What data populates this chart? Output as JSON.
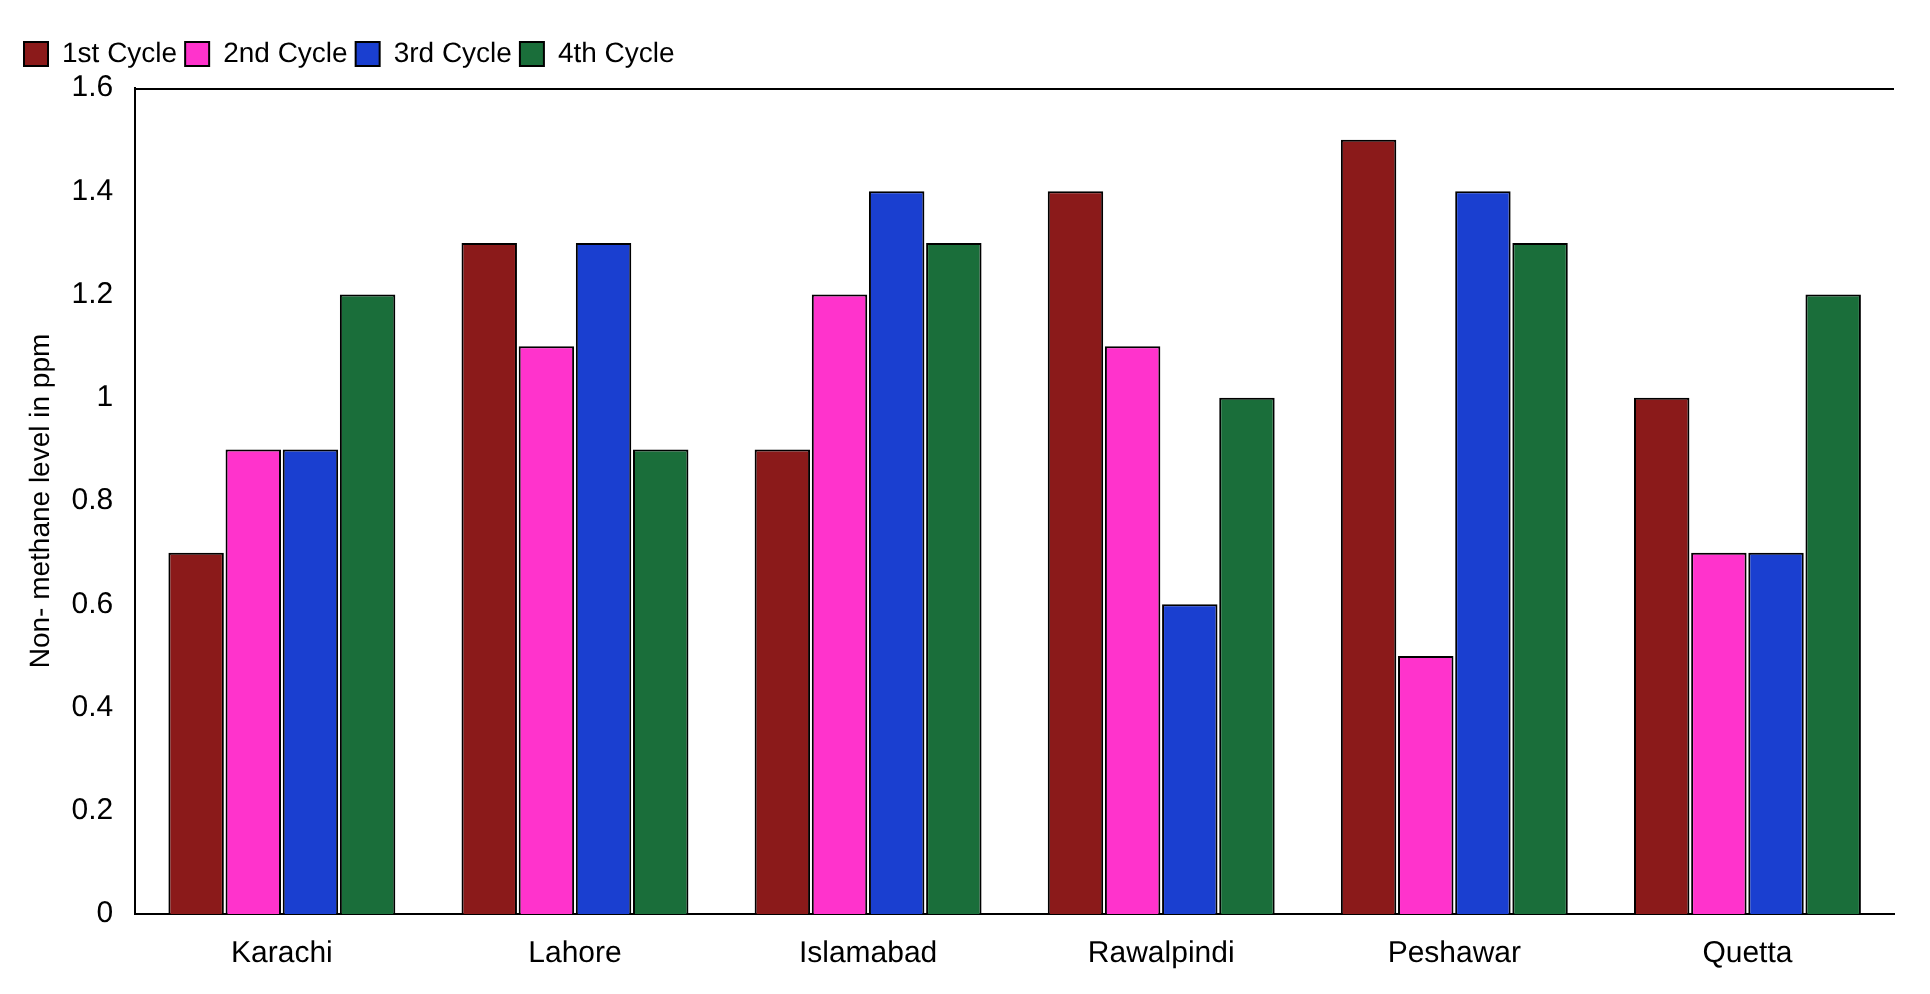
{
  "chart_data": {
    "type": "bar",
    "ylabel": "Non- methane level in ppm",
    "categories": [
      "Karachi",
      "Lahore",
      "Islamabad",
      "Rawalpindi",
      "Peshawar",
      "Quetta"
    ],
    "series": [
      {
        "name": "1st Cycle",
        "color": "#8b1a1a",
        "values": [
          0.7,
          1.3,
          0.9,
          1.4,
          1.5,
          1.0
        ]
      },
      {
        "name": "2nd Cycle",
        "color": "#ff33cc",
        "values": [
          0.9,
          1.1,
          1.2,
          1.1,
          0.5,
          0.7
        ]
      },
      {
        "name": "3rd Cycle",
        "color": "#1a3fd0",
        "values": [
          0.9,
          1.3,
          1.4,
          0.6,
          1.4,
          0.7
        ]
      },
      {
        "name": "4th Cycle",
        "color": "#1a6e3a",
        "values": [
          1.2,
          0.9,
          1.3,
          1.0,
          1.3,
          1.2
        ]
      }
    ],
    "ylim": [
      0,
      1.6
    ],
    "yticks": [
      0,
      0.2,
      0.4,
      0.6,
      0.8,
      1,
      1.2,
      1.4,
      1.6
    ],
    "grid": false,
    "legend": "top left"
  }
}
